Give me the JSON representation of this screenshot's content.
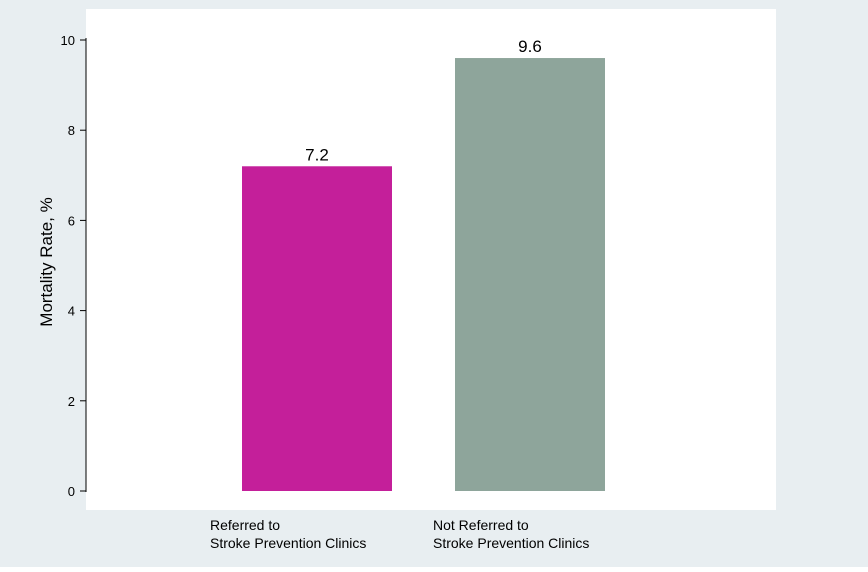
{
  "colors": {
    "outer_bg": "#e8eef1",
    "plot_bg": "#ffffff",
    "referred": "#c41f9a",
    "not_referred": "#8ea59b",
    "axis": "#000000",
    "text": "#000000"
  },
  "chart_data": {
    "type": "bar",
    "title": "",
    "xlabel": "",
    "ylabel": "Mortality Rate, %",
    "ylim": [
      0,
      10
    ],
    "yticks": [
      0,
      2,
      4,
      6,
      8,
      10
    ],
    "grid": false,
    "legend": "none",
    "categories": [
      [
        "Referred to",
        "Stroke Prevention Clinics"
      ],
      [
        "Not Referred to",
        "Stroke Prevention Clinics"
      ]
    ],
    "values": [
      7.2,
      9.6
    ],
    "data_labels": [
      "7.2",
      "9.6"
    ],
    "bar_colors": [
      "#c41f9a",
      "#8ea59b"
    ]
  }
}
